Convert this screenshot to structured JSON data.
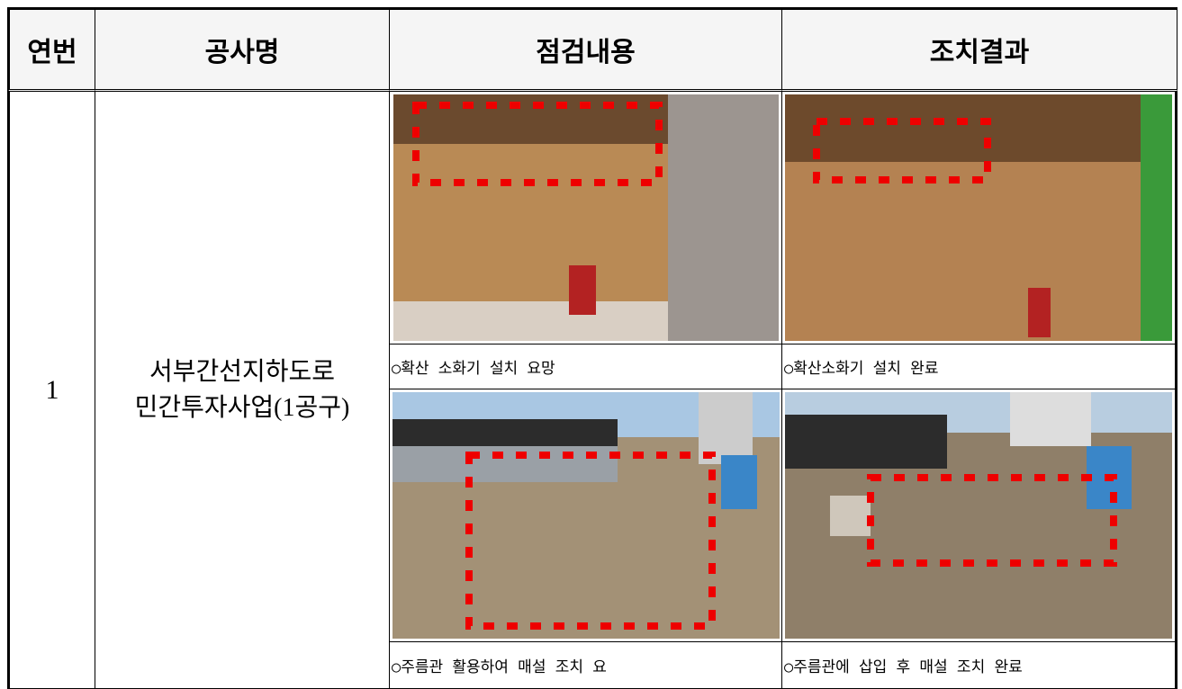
{
  "header": {
    "columns": [
      "연번",
      "공사명",
      "점검내용",
      "조치결과"
    ]
  },
  "rows": [
    {
      "number": "1",
      "project": [
        "서부간선지하도로",
        "민간투자사업(1공구)"
      ],
      "inspection": [
        "○확산 소화기 설치 요망",
        "○주름관 활용하여 매설 조치 요"
      ],
      "action": [
        "○확산소화기 설치 완료",
        "○주름관에 삽입 후 매설 조치 완료"
      ]
    }
  ]
}
